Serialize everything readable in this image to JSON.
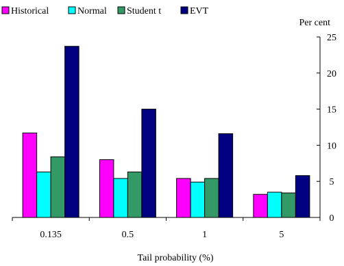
{
  "chart_data": {
    "type": "bar",
    "categories": [
      "0.135",
      "0.5",
      "1",
      "5"
    ],
    "series": [
      {
        "name": "Historical",
        "color": "#ff00ff",
        "values": [
          11.7,
          8.0,
          5.4,
          3.2
        ]
      },
      {
        "name": "Normal",
        "color": "#00ffff",
        "values": [
          6.3,
          5.4,
          4.9,
          3.5
        ]
      },
      {
        "name": "Student t",
        "color": "#339966",
        "values": [
          8.4,
          6.3,
          5.4,
          3.4
        ]
      },
      {
        "name": "EVT",
        "color": "#000080",
        "values": [
          23.7,
          15.0,
          11.6,
          5.8
        ]
      }
    ],
    "xlabel": "Tail probability (%)",
    "ylabel": "Per cent",
    "ylim": [
      0,
      25
    ],
    "yticks": [
      0,
      5,
      10,
      15,
      20,
      25
    ],
    "legend": "top-left",
    "grid": false
  }
}
